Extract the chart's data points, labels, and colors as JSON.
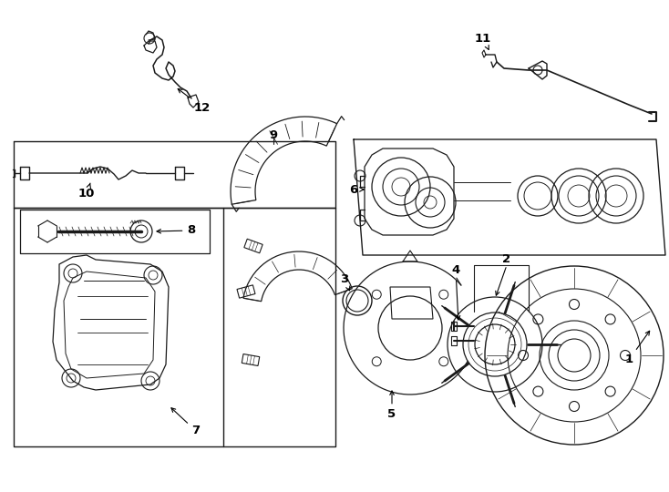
{
  "bg_color": "#ffffff",
  "line_color": "#1a1a1a",
  "fig_width": 7.34,
  "fig_height": 5.4,
  "dpi": 100,
  "lw": 0.75
}
